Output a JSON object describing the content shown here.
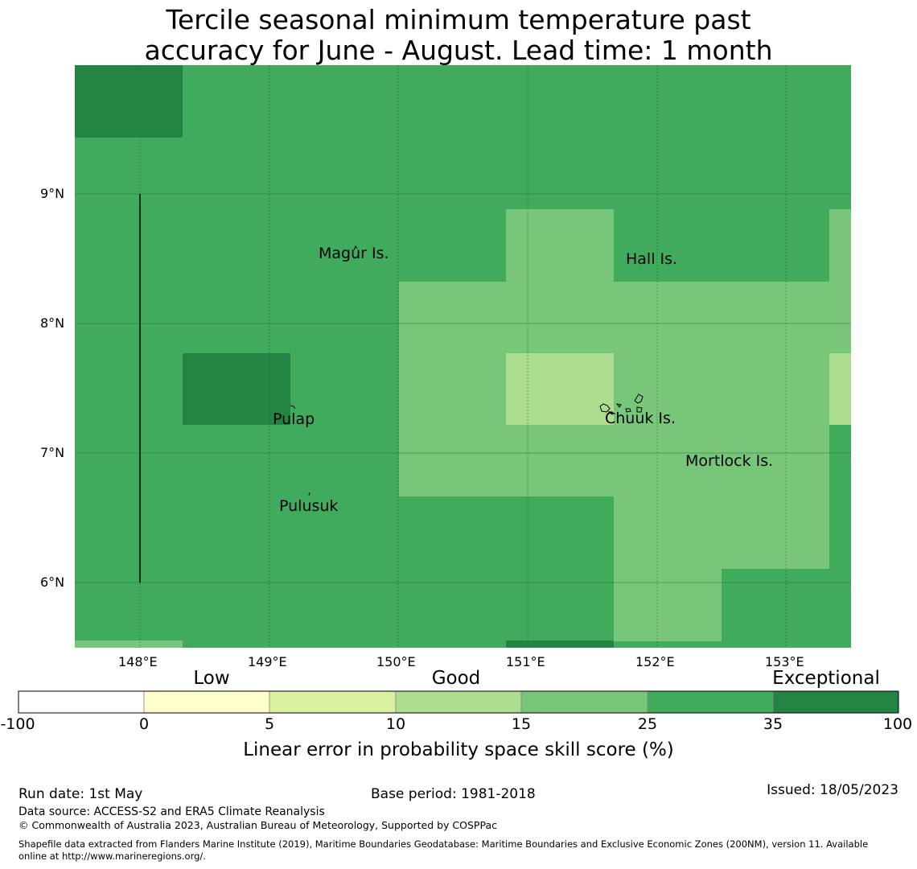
{
  "title_line1": "Tercile seasonal minimum temperature past",
  "title_line2": "accuracy for June - August. Lead time: 1 month",
  "lat_labels": [
    "9°N",
    "8°N",
    "7°N",
    "6°N"
  ],
  "lon_labels": [
    "148°E",
    "149°E",
    "150°E",
    "151°E",
    "152°E",
    "153°E"
  ],
  "places": [
    "Magur Is.",
    "Hall Is.",
    "Pulap",
    "Chuuk Is.",
    "Mortlock Is.",
    "Pulusuk"
  ],
  "colorbar": {
    "categories": [
      "Low",
      "Good",
      "Exceptional"
    ],
    "ticks": [
      "-100",
      "0",
      "5",
      "10",
      "15",
      "25",
      "35",
      "100"
    ],
    "colors": [
      "#ffffff",
      "#ffffcc",
      "#d9f0a3",
      "#addd8e",
      "#78c679",
      "#41ab5d",
      "#238443"
    ],
    "label": "Linear error in probability space skill score (%)"
  },
  "footer": {
    "run_date": "Run date: 1st May",
    "base_period": "Base period: 1981-2018",
    "issued": "Issued: 18/05/2023",
    "data_source": "Data source: ACCESS-S2 and ERA5 Climate Reanalysis",
    "copyright": "© Commonwealth of Australia 2023, Australian Bureau of Meteorology, Supported by COSPPac",
    "shapefile_line1": "Shapefile data extracted from Flanders Marine Institute (2019), Maritime Boundaries Geodatabase: Maritime Boundaries and Exclusive Economic Zones (200NM), version 11. Available",
    "shapefile_line2": "online at http://www.marineregions.org/."
  }
}
